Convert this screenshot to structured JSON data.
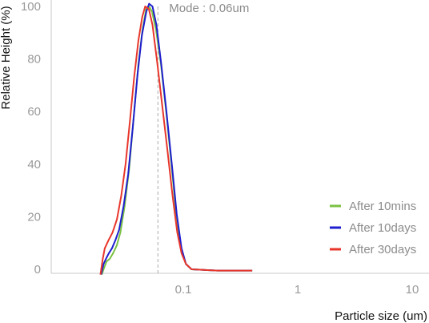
{
  "chart_data": {
    "type": "line",
    "title": "",
    "xlabel": "Particle size (um)",
    "ylabel": "Relative Height (%)",
    "xscale": "log",
    "xlim": [
      0.01,
      10
    ],
    "ylim": [
      0,
      100
    ],
    "xticks": [
      0.1,
      1,
      10
    ],
    "xtick_labels": [
      "0.1",
      "1",
      "10"
    ],
    "yticks": [
      0,
      20,
      40,
      60,
      80,
      100
    ],
    "ytick_labels": [
      "0",
      "20",
      "40",
      "60",
      "80",
      "100"
    ],
    "grid": false,
    "legend_position": "bottom-right",
    "annotation": {
      "text": "Mode : 0.06um",
      "x": 0.06
    },
    "series": [
      {
        "name": "After 10mins",
        "color": "#7ac143",
        "points": [
          [
            0.0194,
            -2
          ],
          [
            0.0205,
            1
          ],
          [
            0.0214,
            3
          ],
          [
            0.0228,
            4
          ],
          [
            0.0243,
            6
          ],
          [
            0.0262,
            9
          ],
          [
            0.0282,
            14
          ],
          [
            0.0307,
            24
          ],
          [
            0.0336,
            38
          ],
          [
            0.0369,
            58
          ],
          [
            0.0405,
            78
          ],
          [
            0.044,
            91
          ],
          [
            0.0474,
            99
          ],
          [
            0.0503,
            100
          ],
          [
            0.0534,
            98
          ],
          [
            0.0578,
            91
          ],
          [
            0.0638,
            78
          ],
          [
            0.0717,
            58
          ],
          [
            0.0795,
            38
          ],
          [
            0.0871,
            20
          ],
          [
            0.0957,
            8
          ],
          [
            0.1054,
            2
          ],
          [
            0.118,
            0
          ],
          [
            0.2,
            -0.5
          ],
          [
            0.4,
            -0.5
          ]
        ]
      },
      {
        "name": "After 10days",
        "color": "#1f1fcf",
        "points": [
          [
            0.0191,
            -2
          ],
          [
            0.0201,
            2
          ],
          [
            0.0211,
            4
          ],
          [
            0.0223,
            6
          ],
          [
            0.0238,
            8
          ],
          [
            0.0255,
            11
          ],
          [
            0.0275,
            15
          ],
          [
            0.0301,
            24
          ],
          [
            0.033,
            36
          ],
          [
            0.0362,
            54
          ],
          [
            0.0398,
            74
          ],
          [
            0.0435,
            89
          ],
          [
            0.0475,
            98
          ],
          [
            0.0503,
            101
          ],
          [
            0.0538,
            100
          ],
          [
            0.0582,
            93
          ],
          [
            0.0638,
            79
          ],
          [
            0.0717,
            59
          ],
          [
            0.0798,
            39
          ],
          [
            0.0877,
            21
          ],
          [
            0.0965,
            8
          ],
          [
            0.1054,
            2
          ],
          [
            0.118,
            0
          ],
          [
            0.2,
            -0.5
          ],
          [
            0.4,
            -0.5
          ]
        ]
      },
      {
        "name": "After 30days",
        "color": "#e8362b",
        "points": [
          [
            0.0189,
            -2
          ],
          [
            0.0198,
            4
          ],
          [
            0.0206,
            8
          ],
          [
            0.0222,
            11
          ],
          [
            0.0241,
            14
          ],
          [
            0.0263,
            19
          ],
          [
            0.0287,
            28
          ],
          [
            0.0313,
            40
          ],
          [
            0.0341,
            56
          ],
          [
            0.0372,
            73
          ],
          [
            0.0405,
            87
          ],
          [
            0.0438,
            96
          ],
          [
            0.0465,
            100
          ],
          [
            0.05,
            99
          ],
          [
            0.0538,
            93
          ],
          [
            0.0591,
            79
          ],
          [
            0.0656,
            62
          ],
          [
            0.0728,
            45
          ],
          [
            0.0806,
            28
          ],
          [
            0.0886,
            14
          ],
          [
            0.0967,
            6
          ],
          [
            0.1054,
            2
          ],
          [
            0.118,
            0
          ],
          [
            0.2,
            -0.5
          ],
          [
            0.4,
            -0.5
          ]
        ]
      }
    ]
  }
}
